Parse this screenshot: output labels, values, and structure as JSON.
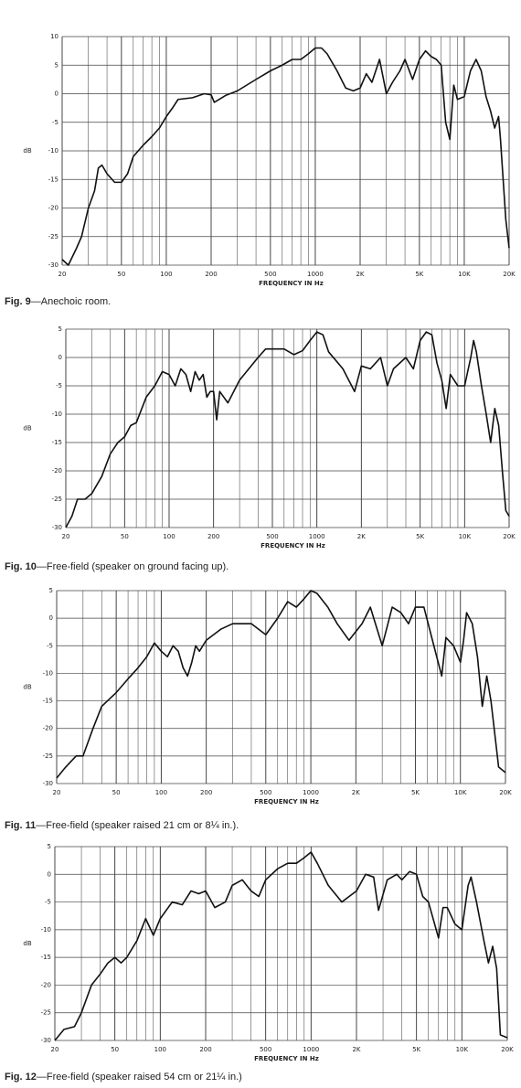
{
  "chart_data": [
    {
      "type": "line",
      "figure": "Fig. 9",
      "title": "—Anechoic room.",
      "xlabel": "FREQUENCY IN Hz",
      "ylabel": "dB",
      "xscale": "log",
      "grid": true,
      "color": "#111111",
      "xlim": [
        20,
        20000
      ],
      "ylim": [
        -30,
        10
      ],
      "xticks": [
        20,
        50,
        100,
        200,
        500,
        1000,
        {
          "value": 2000,
          "label": "2K"
        },
        {
          "value": 5000,
          "label": "5K"
        },
        {
          "value": 10000,
          "label": "10K"
        },
        {
          "value": 20000,
          "label": "20K"
        }
      ],
      "minor_xticks": [
        30,
        40,
        60,
        70,
        80,
        90,
        300,
        400,
        600,
        700,
        800,
        900,
        3000,
        4000,
        6000,
        7000,
        8000,
        9000
      ],
      "yticks": [
        -30,
        -25,
        -20,
        -15,
        -10,
        -5,
        0,
        5,
        10
      ],
      "x": [
        20,
        22,
        25,
        27,
        30,
        33,
        35,
        37,
        40,
        45,
        50,
        55,
        60,
        70,
        80,
        90,
        100,
        110,
        120,
        150,
        180,
        200,
        210,
        250,
        300,
        400,
        500,
        600,
        700,
        800,
        900,
        1000,
        1100,
        1200,
        1400,
        1600,
        1800,
        2000,
        2200,
        2400,
        2700,
        3000,
        3300,
        3700,
        4000,
        4500,
        5000,
        5500,
        6000,
        6500,
        7000,
        7500,
        8000,
        8500,
        9000,
        10000,
        11000,
        12000,
        13000,
        14000,
        15000,
        16000,
        17000,
        17500,
        19000,
        20000
      ],
      "values": [
        -29,
        -30,
        -27,
        -25,
        -20,
        -17,
        -13,
        -12.5,
        -14,
        -15.5,
        -15.5,
        -14,
        -11,
        -9,
        -7.5,
        -6,
        -4,
        -2.5,
        -1,
        -0.7,
        0,
        -0.2,
        -1.5,
        -0.3,
        0.5,
        2.5,
        4,
        5,
        6,
        6,
        7,
        8,
        8,
        7,
        4,
        1,
        0.5,
        1,
        3.5,
        2,
        6,
        0,
        2,
        4,
        6,
        2.5,
        6,
        7.5,
        6.5,
        6,
        5,
        -5,
        -8,
        1.5,
        -1,
        -0.5,
        4,
        6,
        4,
        -0.5,
        -3,
        -6,
        -4,
        -8,
        -22,
        -27
      ]
    },
    {
      "type": "line",
      "figure": "Fig. 10",
      "title": "—Free-field (speaker on ground facing up).",
      "xlabel": "FREQUENCY IN Hz",
      "ylabel": "dB",
      "xscale": "log",
      "grid": true,
      "color": "#111111",
      "xlim": [
        20,
        20000
      ],
      "ylim": [
        -30,
        5
      ],
      "xticks": [
        20,
        50,
        100,
        200,
        500,
        1000,
        {
          "value": 2000,
          "label": "2K"
        },
        {
          "value": 5000,
          "label": "5K"
        },
        {
          "value": 10000,
          "label": "10K"
        },
        {
          "value": 20000,
          "label": "20K"
        }
      ],
      "minor_xticks": [
        30,
        40,
        60,
        70,
        80,
        90,
        300,
        400,
        600,
        700,
        800,
        900,
        3000,
        4000,
        6000,
        7000,
        8000,
        9000
      ],
      "yticks": [
        -30,
        -25,
        -20,
        -15,
        -10,
        -5,
        0,
        5
      ],
      "x": [
        20,
        22,
        24,
        27,
        30,
        35,
        40,
        45,
        50,
        55,
        60,
        70,
        80,
        90,
        100,
        110,
        120,
        130,
        140,
        150,
        160,
        170,
        180,
        190,
        200,
        210,
        220,
        250,
        300,
        400,
        450,
        600,
        700,
        800,
        900,
        1000,
        1100,
        1200,
        1500,
        1800,
        2000,
        2300,
        2700,
        3000,
        3300,
        4000,
        4500,
        5000,
        5500,
        6000,
        6500,
        7000,
        7500,
        8000,
        9000,
        10000,
        11000,
        11500,
        12000,
        13000,
        14000,
        15000,
        16000,
        17000,
        18000,
        19000,
        20000
      ],
      "values": [
        -30,
        -28,
        -25,
        -25,
        -24,
        -21,
        -17,
        -15,
        -14,
        -12,
        -11.5,
        -7,
        -5,
        -2.5,
        -3,
        -5,
        -2,
        -3,
        -6,
        -2.5,
        -4,
        -3,
        -7,
        -6,
        -6,
        -11,
        -6,
        -8,
        -4,
        0,
        1.5,
        1.5,
        0.5,
        1.2,
        3,
        4.5,
        4,
        1,
        -2,
        -6,
        -1.5,
        -2,
        0,
        -5,
        -2,
        0,
        -2,
        3,
        4.5,
        4,
        -1,
        -4,
        -9,
        -3,
        -5,
        -5,
        0,
        3,
        1,
        -5,
        -10,
        -15,
        -9,
        -12,
        -20,
        -27,
        -28
      ]
    },
    {
      "type": "line",
      "figure": "Fig. 11",
      "title": "—Free-field (speaker raised 21 cm or 8¼ in.).",
      "xlabel": "FREQUENCY IN Hz",
      "ylabel": "dB",
      "xscale": "log",
      "grid": true,
      "color": "#111111",
      "xlim": [
        20,
        20000
      ],
      "ylim": [
        -30,
        5
      ],
      "xticks": [
        20,
        50,
        100,
        200,
        500,
        1000,
        {
          "value": 2000,
          "label": "2K"
        },
        {
          "value": 5000,
          "label": "5K"
        },
        {
          "value": 10000,
          "label": "10K"
        },
        {
          "value": 20000,
          "label": "20K"
        }
      ],
      "minor_xticks": [
        30,
        40,
        60,
        70,
        80,
        90,
        300,
        400,
        600,
        700,
        800,
        900,
        3000,
        4000,
        6000,
        7000,
        8000,
        9000
      ],
      "yticks": [
        -30,
        -25,
        -20,
        -15,
        -10,
        -5,
        0,
        5
      ],
      "x": [
        20,
        23,
        27,
        30,
        35,
        40,
        50,
        60,
        70,
        80,
        90,
        100,
        110,
        120,
        130,
        140,
        150,
        160,
        170,
        180,
        200,
        250,
        300,
        400,
        500,
        600,
        700,
        800,
        900,
        1000,
        1100,
        1300,
        1500,
        1800,
        2200,
        2500,
        3000,
        3500,
        4000,
        4500,
        5000,
        5700,
        6500,
        7500,
        8000,
        9000,
        10000,
        10500,
        11000,
        12000,
        13000,
        14000,
        15000,
        16000,
        18000,
        20000
      ],
      "values": [
        -29,
        -27,
        -25,
        -25,
        -20,
        -16,
        -13.5,
        -11,
        -9,
        -7,
        -4.5,
        -6,
        -7,
        -5,
        -6,
        -9,
        -10.5,
        -8,
        -5,
        -6,
        -4,
        -2,
        -1,
        -1,
        -3,
        0,
        3,
        2,
        3.5,
        5,
        4.5,
        2,
        -1,
        -4,
        -1,
        2,
        -5,
        2,
        1,
        -1,
        2,
        2,
        -4,
        -10.5,
        -3.5,
        -5,
        -8,
        -4,
        1,
        -1,
        -7,
        -16,
        -10.5,
        -15,
        -27,
        -28
      ]
    },
    {
      "type": "line",
      "figure": "Fig. 12",
      "title": "—Free-field (speaker raised 54 cm or 21¼ in.)",
      "xlabel": "FREQUENCY IN Hz",
      "ylabel": "dB",
      "xscale": "log",
      "grid": true,
      "color": "#111111",
      "xlim": [
        20,
        20000
      ],
      "ylim": [
        -30,
        5
      ],
      "xticks": [
        20,
        50,
        100,
        200,
        500,
        1000,
        {
          "value": 2000,
          "label": "2K"
        },
        {
          "value": 5000,
          "label": "5K"
        },
        {
          "value": 10000,
          "label": "10K"
        },
        {
          "value": 20000,
          "label": "20K"
        }
      ],
      "minor_xticks": [
        30,
        40,
        60,
        70,
        80,
        90,
        300,
        400,
        600,
        700,
        800,
        900,
        3000,
        4000,
        6000,
        7000,
        8000,
        9000
      ],
      "yticks": [
        -30,
        -25,
        -20,
        -15,
        -10,
        -5,
        0,
        5
      ],
      "x": [
        20,
        23,
        27,
        30,
        35,
        40,
        45,
        50,
        55,
        60,
        70,
        80,
        90,
        100,
        120,
        140,
        160,
        180,
        200,
        230,
        270,
        300,
        350,
        400,
        450,
        500,
        600,
        700,
        800,
        900,
        1000,
        1100,
        1300,
        1600,
        2000,
        2300,
        2600,
        2800,
        3200,
        3700,
        4000,
        4500,
        5000,
        5500,
        6000,
        7000,
        7500,
        8000,
        9000,
        10000,
        11000,
        11500,
        12500,
        14000,
        15000,
        16000,
        17000,
        18000,
        20000
      ],
      "values": [
        -30,
        -28,
        -27.5,
        -25,
        -20,
        -18,
        -16,
        -15,
        -16,
        -15,
        -12,
        -8,
        -11,
        -8,
        -5,
        -5.5,
        -3,
        -3.5,
        -3,
        -6,
        -5,
        -2,
        -1,
        -3,
        -4,
        -1,
        1,
        2,
        2,
        3,
        4,
        2,
        -2,
        -5,
        -3,
        0,
        -0.5,
        -6.5,
        -1,
        0,
        -1,
        0.5,
        0,
        -4,
        -5,
        -11.5,
        -6,
        -6,
        -9,
        -10,
        -2,
        -0.5,
        -5,
        -12,
        -16,
        -13,
        -17,
        -29,
        -29.5
      ]
    }
  ]
}
